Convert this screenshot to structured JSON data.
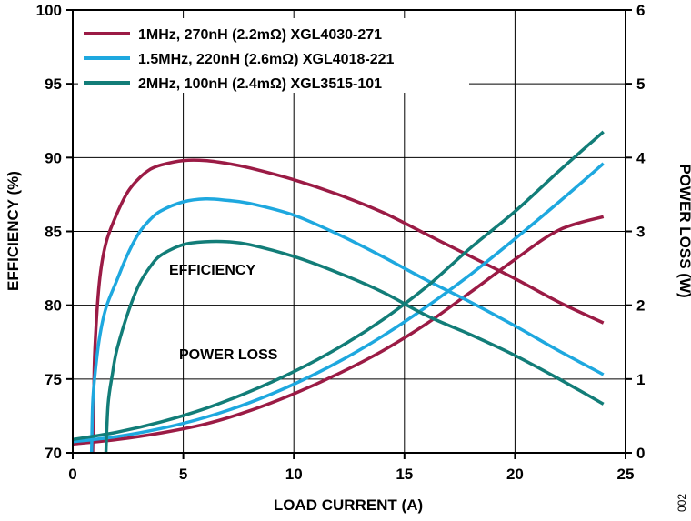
{
  "chart_data": {
    "type": "line",
    "xlabel": "LOAD CURRENT (A)",
    "ylabel_left": "EFFICIENCY (%)",
    "ylabel_right": "POWER LOSS (W)",
    "xlim": [
      0,
      25
    ],
    "ylim_left": [
      70,
      100
    ],
    "ylim_right": [
      0,
      6
    ],
    "x_ticks": [
      0,
      5,
      10,
      15,
      20,
      25
    ],
    "y_left_ticks": [
      70,
      75,
      80,
      85,
      90,
      95,
      100
    ],
    "y_right_ticks": [
      0,
      1,
      2,
      3,
      4,
      5,
      6
    ],
    "grid": true,
    "legend_position": "top-left",
    "annotations": [
      "EFFICIENCY",
      "POWER LOSS"
    ],
    "figure_id": "002",
    "series": [
      {
        "name": "1MHz, 270nH (2.2mΩ) XGL4030-271",
        "color": "#9b1b45",
        "efficiency": {
          "x": [
            0.9,
            0.95,
            1.0,
            1.2,
            1.5,
            2,
            2.5,
            3,
            3.5,
            4,
            5,
            6,
            7,
            8,
            10,
            12,
            14,
            16,
            18,
            20,
            22,
            24
          ],
          "y": [
            70,
            74,
            77,
            81.5,
            84.2,
            86.2,
            87.7,
            88.6,
            89.2,
            89.5,
            89.8,
            89.8,
            89.6,
            89.3,
            88.5,
            87.5,
            86.3,
            84.8,
            83.3,
            81.8,
            80.2,
            78.8
          ]
        },
        "power_loss": {
          "x": [
            0,
            2,
            4,
            6,
            8,
            10,
            12,
            14,
            16,
            18,
            20,
            22,
            24
          ],
          "y": [
            0.12,
            0.18,
            0.27,
            0.39,
            0.57,
            0.8,
            1.07,
            1.38,
            1.75,
            2.18,
            2.62,
            3.02,
            3.2
          ]
        }
      },
      {
        "name": "1.5MHz, 220nH (2.6mΩ) XGL4018-221",
        "color": "#1ea8df",
        "efficiency": {
          "x": [
            0.85,
            0.9,
            1.0,
            1.2,
            1.5,
            2,
            2.5,
            3,
            3.5,
            4,
            5,
            6,
            7,
            8,
            10,
            12,
            14,
            16,
            18,
            20,
            22,
            24
          ],
          "y": [
            70,
            73.3,
            75.2,
            77.7,
            79.8,
            81.7,
            83.5,
            84.9,
            85.8,
            86.4,
            87.0,
            87.2,
            87.1,
            86.9,
            86.1,
            84.8,
            83.3,
            81.7,
            80.2,
            78.6,
            76.9,
            75.3
          ]
        },
        "power_loss": {
          "x": [
            0,
            2,
            4,
            6,
            8,
            10,
            12,
            14,
            16,
            18,
            20,
            22,
            24
          ],
          "y": [
            0.15,
            0.22,
            0.33,
            0.48,
            0.68,
            0.93,
            1.23,
            1.58,
            1.98,
            2.42,
            2.9,
            3.4,
            3.92
          ]
        }
      },
      {
        "name": "2MHz, 100nH (2.4mΩ) XGL3515-101",
        "color": "#127d78",
        "efficiency": {
          "x": [
            1.5,
            1.6,
            1.8,
            2,
            2.5,
            3,
            3.5,
            4,
            5,
            6,
            7,
            8,
            10,
            12,
            14,
            16,
            18,
            20,
            22,
            24
          ],
          "y": [
            70,
            73.3,
            75.4,
            77.0,
            79.5,
            81.4,
            82.6,
            83.4,
            84.1,
            84.3,
            84.3,
            84.1,
            83.3,
            82.2,
            80.9,
            79.3,
            78.0,
            76.6,
            75.0,
            73.3
          ]
        },
        "power_loss": {
          "x": [
            0,
            2,
            4,
            6,
            8,
            10,
            12,
            14,
            16,
            18,
            20,
            22,
            24
          ],
          "y": [
            0.18,
            0.28,
            0.42,
            0.6,
            0.83,
            1.1,
            1.42,
            1.8,
            2.25,
            2.78,
            3.27,
            3.82,
            4.35
          ]
        }
      }
    ]
  }
}
